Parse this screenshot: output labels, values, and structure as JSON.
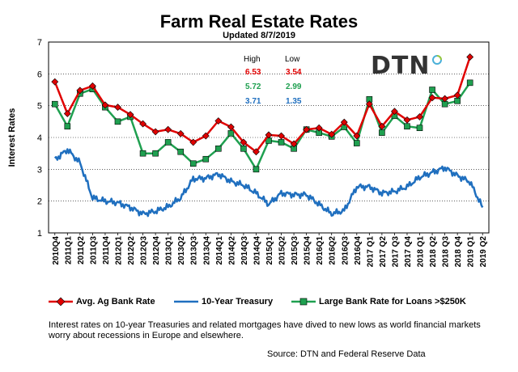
{
  "chart_data": {
    "type": "line",
    "title": "Farm Real Estate Rates",
    "subtitle": "Updated  8/7/2019",
    "ylabel": "Interest Rates",
    "xlabel": "",
    "ylim": [
      1,
      7
    ],
    "yticks": [
      1,
      2,
      3,
      4,
      5,
      6,
      7
    ],
    "grid": true,
    "legend_position": "bottom",
    "categories": [
      "2010Q4",
      "2011Q1",
      "2011Q2",
      "2011Q3",
      "2011Q4",
      "2012Q1",
      "2012Q2",
      "2012Q3",
      "2012Q4",
      "2013Q1",
      "2013Q2",
      "2013Q3",
      "2013Q4",
      "2014Q1",
      "2014Q2",
      "2014Q3",
      "2014Q4",
      "2015Q1",
      "2015Q2",
      "2015Q3",
      "2015Q4",
      "2016Q1",
      "2016Q2",
      "2016Q3",
      "2016Q4",
      "2017 Q1",
      "2017 Q2",
      "2017 Q3",
      "2017 Q4",
      "2018 Q1",
      "2018 Q2",
      "2018 Q3",
      "2018 Q4",
      "2019 Q1",
      "2019 Q2"
    ],
    "series": [
      {
        "name": "Avg. Ag Bank Rate",
        "color": "#e00000",
        "marker": "diamond",
        "values": [
          5.75,
          4.75,
          5.48,
          5.62,
          5.02,
          4.95,
          4.72,
          4.43,
          4.18,
          4.25,
          4.12,
          3.85,
          4.05,
          4.52,
          4.33,
          3.85,
          3.55,
          4.08,
          4.05,
          3.8,
          4.25,
          4.3,
          4.1,
          4.48,
          4.05,
          5.05,
          4.35,
          4.82,
          4.55,
          4.65,
          5.25,
          5.22,
          5.33,
          6.53,
          null
        ]
      },
      {
        "name": "Large Bank Rate for Loans >$250K",
        "color": "#1fa050",
        "marker": "square",
        "values": [
          5.05,
          4.35,
          5.38,
          5.52,
          4.95,
          4.5,
          4.65,
          3.5,
          3.5,
          3.85,
          3.55,
          3.18,
          3.32,
          3.65,
          4.13,
          3.65,
          3.0,
          3.9,
          3.85,
          3.65,
          4.25,
          4.15,
          4.03,
          4.33,
          3.82,
          5.2,
          4.15,
          4.68,
          4.35,
          4.3,
          5.5,
          5.05,
          5.15,
          5.72,
          null
        ]
      },
      {
        "name": "10-Year Treasury",
        "color": "#1f6fbf",
        "marker": "none",
        "values": [
          3.3,
          3.62,
          3.2,
          2.1,
          2.0,
          1.95,
          1.8,
          1.6,
          1.68,
          1.82,
          2.1,
          2.7,
          2.72,
          2.85,
          2.62,
          2.5,
          2.25,
          1.9,
          2.25,
          2.2,
          2.2,
          1.9,
          1.6,
          1.7,
          2.45,
          2.45,
          2.25,
          2.3,
          2.45,
          2.75,
          2.9,
          3.05,
          2.8,
          2.6,
          1.8
        ]
      }
    ],
    "stats_box": {
      "headers": [
        "High",
        "Low"
      ],
      "rows": [
        {
          "high": "6.53",
          "low": "3.54",
          "color": "#e00000"
        },
        {
          "high": "5.72",
          "low": "2.99",
          "color": "#1fa050"
        },
        {
          "high": "3.71",
          "low": "1.35",
          "color": "#1f6fbf"
        }
      ]
    }
  },
  "logo_text": "DTN",
  "caption": "Interest rates on 10-year Treasuries and related mortgages have dived to new lows as world financial markets worry about recessions in Europe and elsewhere.",
  "source": "Source:  DTN  and Federal Reserve Data"
}
